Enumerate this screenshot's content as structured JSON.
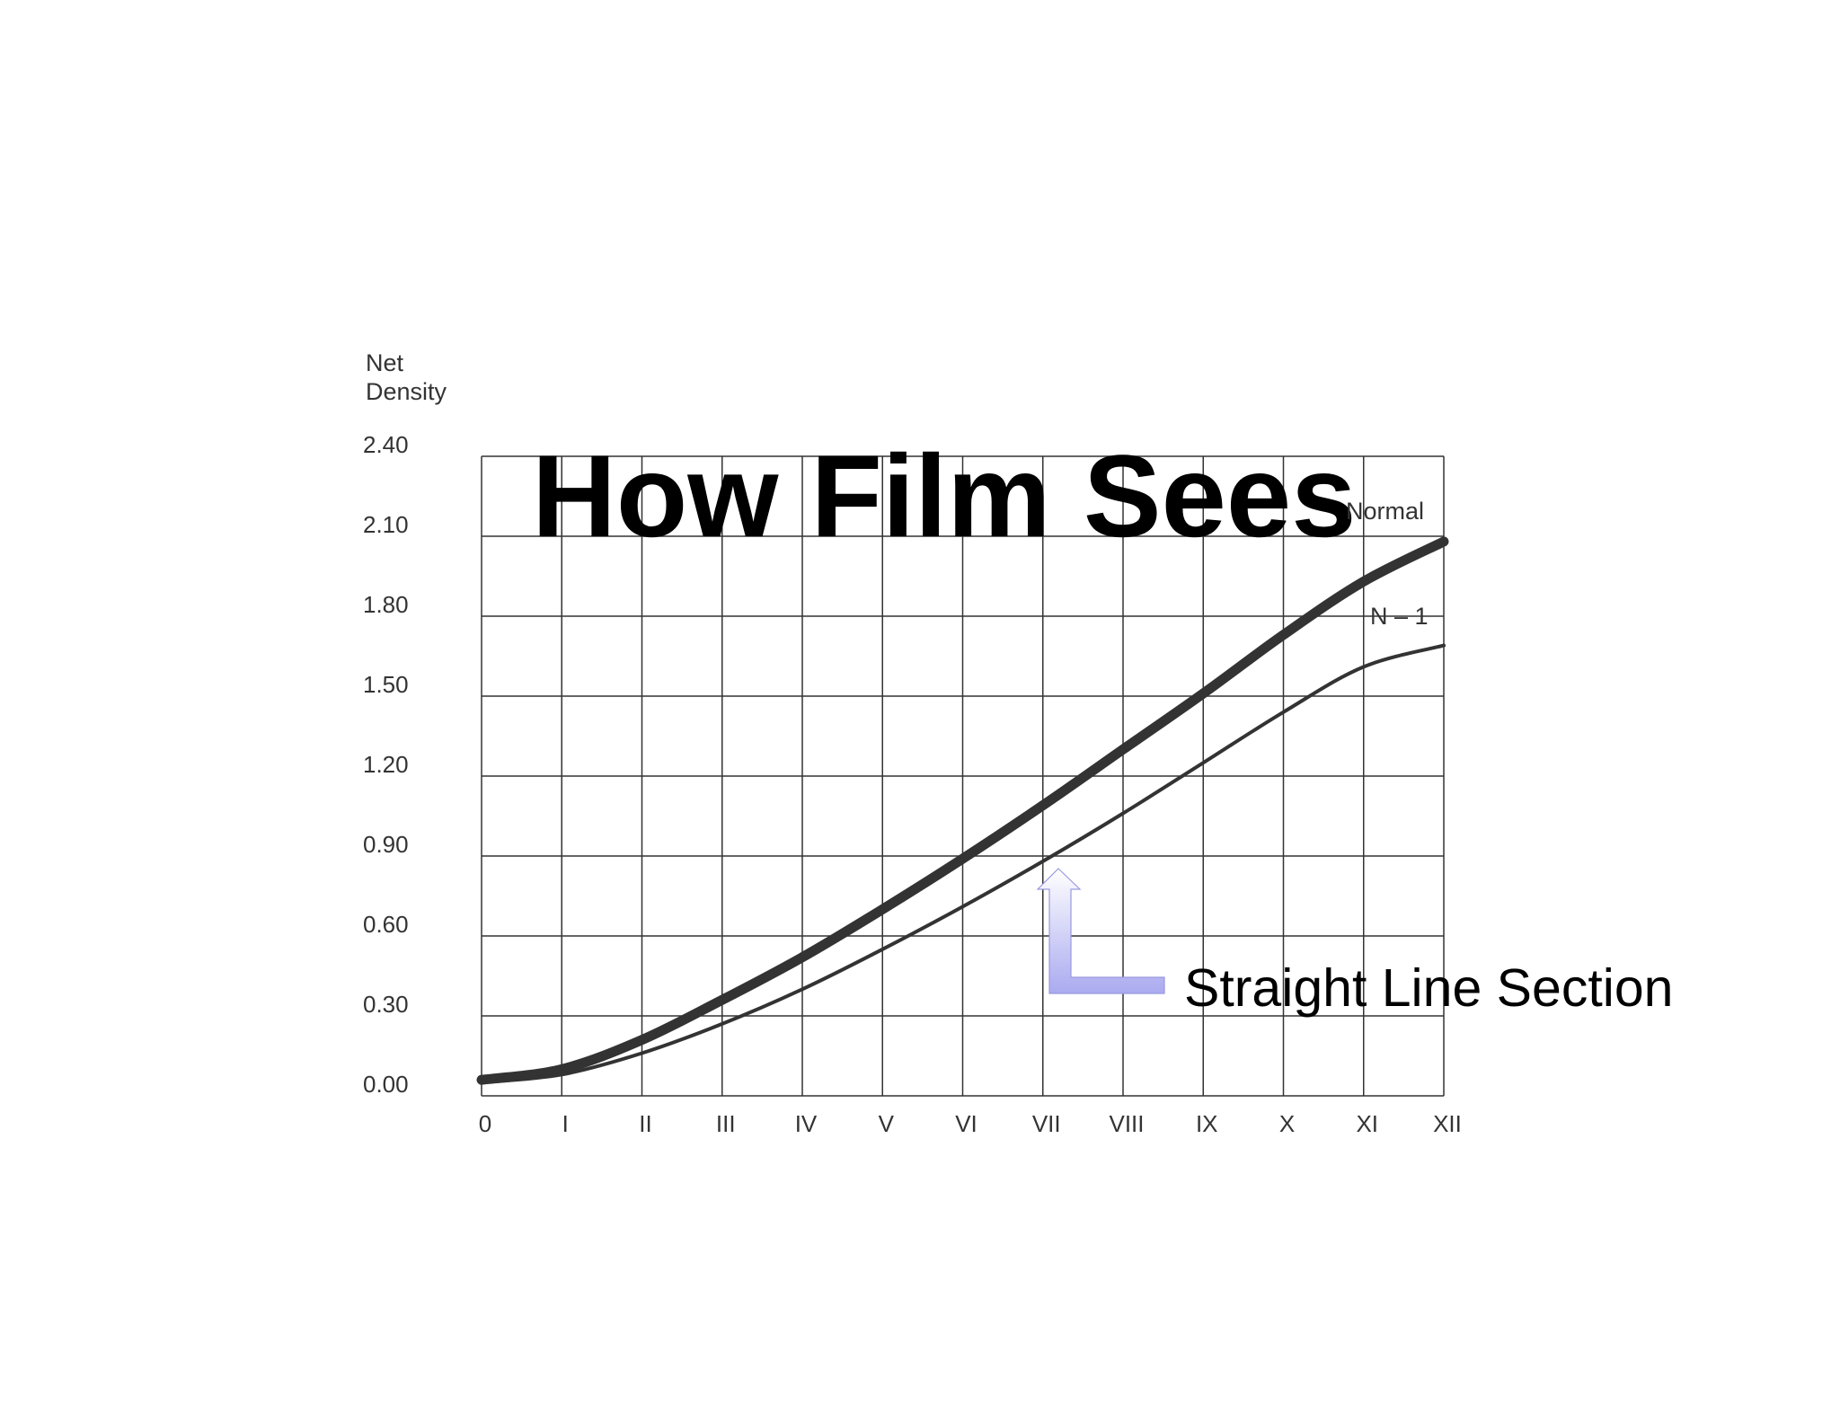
{
  "chart_data": {
    "type": "line",
    "title": "How Film Sees",
    "ylabel": [
      "Net",
      "Density"
    ],
    "xlabel": "",
    "ylim": [
      0,
      2.4
    ],
    "yticks": [
      "0.00",
      "0.30",
      "0.60",
      "0.90",
      "1.20",
      "1.50",
      "1.80",
      "2.10",
      "2.40"
    ],
    "categories": [
      "0",
      "I",
      "II",
      "III",
      "IV",
      "V",
      "VI",
      "VII",
      "VIII",
      "IX",
      "X",
      "XI",
      "XII"
    ],
    "grid": true,
    "series": [
      {
        "name": "Normal",
        "values": [
          0.06,
          0.1,
          0.21,
          0.36,
          0.52,
          0.7,
          0.89,
          1.09,
          1.3,
          1.51,
          1.73,
          1.93,
          2.08
        ],
        "color": "#333333"
      },
      {
        "name": "N – 1",
        "values": [
          0.05,
          0.08,
          0.16,
          0.27,
          0.4,
          0.55,
          0.71,
          0.88,
          1.06,
          1.25,
          1.44,
          1.61,
          1.69
        ],
        "color": "#333333"
      }
    ],
    "annotation": {
      "text": "Straight Line Section",
      "arrow_color": "#aaaaf0"
    }
  }
}
